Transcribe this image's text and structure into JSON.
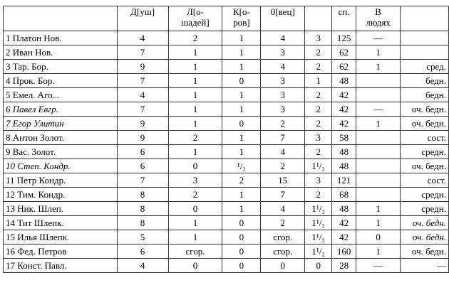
{
  "table": {
    "header": [
      null,
      "Д[уш]",
      "Л[о-\nшадей]",
      "К[о-\nров]",
      "0[вец]",
      null,
      "сп.",
      "В\nлюдях",
      null
    ],
    "rows": [
      [
        "1 Платон Нов.",
        "4",
        "2",
        "1",
        "4",
        "3",
        "125",
        "—",
        null
      ],
      [
        "2 Иван Нов.",
        "7",
        "1",
        "1",
        "3",
        "2",
        "62",
        "1",
        null
      ],
      [
        "3 Тар. Бор.",
        "9",
        "1",
        "1",
        "4",
        "2",
        "62",
        "1",
        "сред."
      ],
      [
        "4 Прок. Бор.",
        "7",
        "1",
        "0",
        "3",
        "1",
        "48",
        null,
        "бедн."
      ],
      [
        "5 Емел. Аго...",
        "4",
        "1",
        "1",
        "3",
        "2",
        "42",
        null,
        "бедн."
      ],
      [
        "6 Павел Евгр.",
        "7",
        "1",
        "1",
        "3",
        "2",
        "42",
        "—",
        "оч. бедн."
      ],
      [
        "7 Егор Улитин",
        "9",
        "1",
        "0",
        "2",
        "2",
        "42",
        "1",
        "оч. бедн."
      ],
      [
        "8 Антон Золот.",
        "9",
        "2",
        "1",
        "7",
        "3",
        "58",
        null,
        "сост."
      ],
      [
        "9 Вас. Золот.",
        "6",
        "1",
        "1",
        "4",
        "2",
        "48",
        null,
        "средн."
      ],
      [
        "10 Степ. Кондр.",
        "6",
        "0",
        "¹/₂",
        "2",
        "1¹/₂",
        "48",
        null,
        "оч. бедн."
      ],
      [
        "11 Петр Кондр.",
        "7",
        "3",
        "2",
        "15",
        "3",
        "121",
        null,
        "сост."
      ],
      [
        "12 Тим. Кондр.",
        "8",
        "2",
        "1",
        "7",
        "2",
        "68",
        null,
        "средн."
      ],
      [
        "13 Ник. Шлеп.",
        "8",
        "0",
        "1",
        "4",
        "1¹/₂",
        "48",
        "1",
        "средн."
      ],
      [
        "14 Тит Шлепк.",
        "8",
        "1",
        "0",
        "2",
        "1¹/₂",
        "42",
        "1",
        "оч. бедн."
      ],
      [
        "15 Илья Шлепк.",
        "5",
        "1",
        "0",
        "сгор.",
        "1¹/₂",
        "42",
        "0",
        "оч. бедн."
      ],
      [
        "16 Фед. Петров",
        "6",
        "сгор.",
        "0",
        "сгор.",
        "1¹/₂",
        "160",
        "1",
        "оч. бедн."
      ],
      [
        "17 Конст. Павл.",
        "4",
        "0",
        "0",
        "0",
        "0",
        "28",
        "—",
        "—"
      ]
    ]
  }
}
